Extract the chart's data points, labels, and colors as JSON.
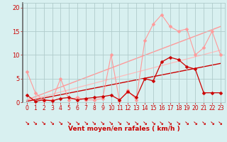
{
  "title": "",
  "xlabel": "Vent moyen/en rafales ( km/h )",
  "ylabel": "",
  "bg_color": "#d8f0f0",
  "grid_color": "#b0cccc",
  "text_color": "#cc0000",
  "xlim": [
    -0.5,
    23.5
  ],
  "ylim": [
    0,
    21
  ],
  "yticks": [
    0,
    5,
    10,
    15,
    20
  ],
  "ytick_labels": [
    "0",
    "5",
    "10",
    "15",
    "20"
  ],
  "xticks": [
    0,
    1,
    2,
    3,
    4,
    5,
    6,
    7,
    8,
    9,
    10,
    11,
    12,
    13,
    14,
    15,
    16,
    17,
    18,
    19,
    20,
    21,
    22,
    23
  ],
  "line1_x": [
    0,
    1,
    2,
    3,
    4,
    5,
    6,
    7,
    8,
    9,
    10,
    11,
    12,
    13,
    14,
    15,
    16,
    17,
    18,
    19,
    20,
    21,
    22,
    23
  ],
  "line1_y": [
    1.5,
    0.2,
    0.5,
    0.3,
    0.8,
    1.0,
    0.5,
    0.8,
    1.0,
    1.2,
    1.5,
    0.5,
    2.2,
    1.0,
    5.0,
    4.5,
    8.5,
    9.5,
    9.0,
    7.5,
    7.0,
    2.0,
    2.0,
    2.0
  ],
  "line1_color": "#cc0000",
  "line1_marker": "D",
  "line1_ms": 2.5,
  "line1_lw": 0.9,
  "line2_x": [
    0,
    1,
    2,
    3,
    4,
    5,
    6,
    7,
    8,
    9,
    10,
    11,
    12,
    13,
    14,
    15,
    16,
    17,
    18,
    19,
    20,
    21,
    22,
    23
  ],
  "line2_y": [
    6.5,
    2.0,
    0.3,
    0.5,
    5.0,
    0.5,
    1.0,
    0.5,
    0.5,
    0.8,
    10.0,
    0.3,
    2.5,
    0.5,
    13.0,
    16.5,
    18.5,
    16.0,
    15.0,
    15.5,
    10.0,
    11.5,
    15.0,
    10.0
  ],
  "line2_color": "#ff9999",
  "line2_marker": "D",
  "line2_ms": 2.5,
  "line2_lw": 0.8,
  "line3_x": [
    0,
    23
  ],
  "line3_y": [
    0.2,
    8.2
  ],
  "line3_color": "#cc0000",
  "line3_lw": 1.0,
  "line4_x": [
    0,
    23
  ],
  "line4_y": [
    0.5,
    16.0
  ],
  "line4_color": "#ff9999",
  "line4_lw": 1.0,
  "line5_x": [
    0,
    23
  ],
  "line5_y": [
    0.3,
    11.0
  ],
  "line5_color": "#ffbbbb",
  "line5_lw": 0.9,
  "arrows_x": [
    0,
    1,
    2,
    3,
    4,
    5,
    6,
    7,
    8,
    9,
    10,
    11,
    12,
    13,
    14,
    15,
    16,
    17,
    18,
    19,
    20,
    21,
    22,
    23
  ],
  "arrow_color": "#cc0000",
  "left_spine_color": "#666666"
}
